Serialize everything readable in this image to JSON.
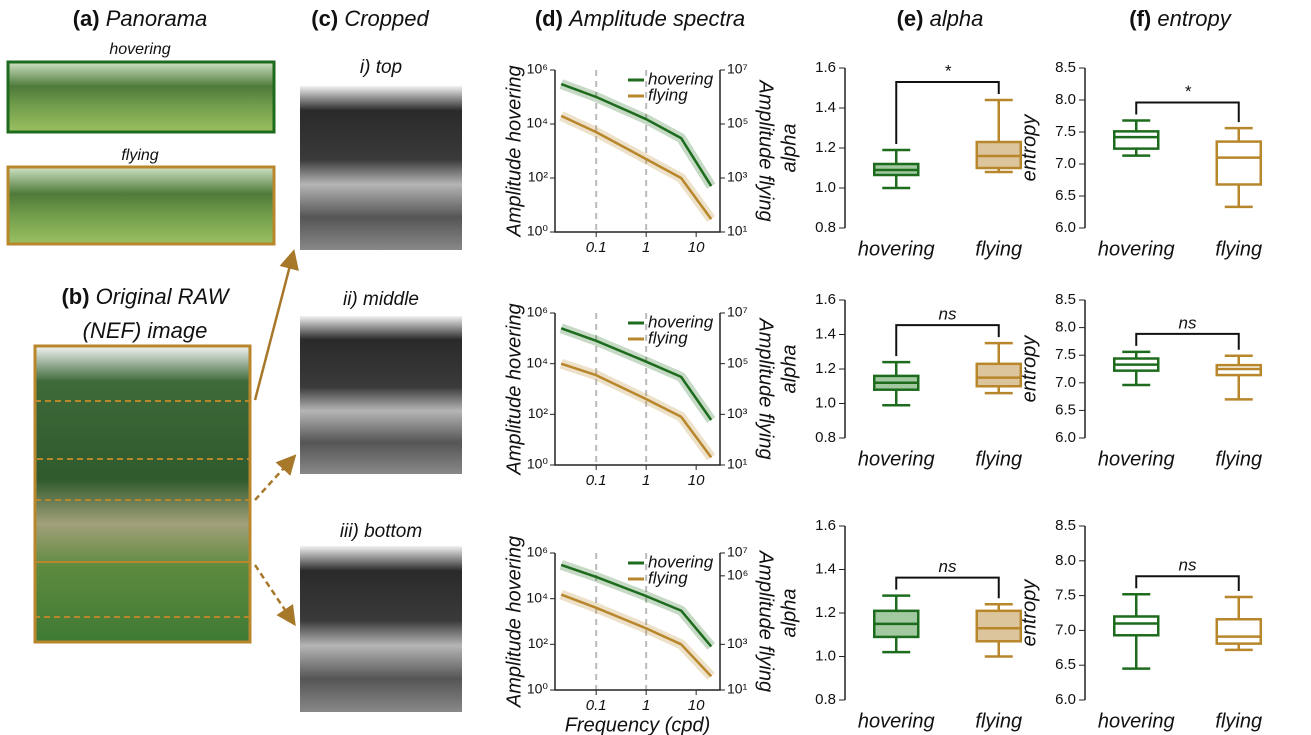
{
  "panels": [
    {
      "label": "(a)",
      "title": "Panorama"
    },
    {
      "label": "(b)",
      "title": [
        "Original RAW",
        "(NEF) image"
      ]
    },
    {
      "label": "(c)",
      "title": "Cropped"
    },
    {
      "label": "(d)",
      "title": "Amplitude spectra"
    },
    {
      "label": "(e)",
      "title": "alpha"
    },
    {
      "label": "(f)",
      "title": "entropy"
    }
  ],
  "panorama_captions": [
    "hovering",
    "flying"
  ],
  "crop_captions": [
    "i) top",
    "ii) middle",
    "iii) bottom"
  ],
  "chart_data": [
    {
      "type": "line",
      "xscale": "log",
      "yscale": "log",
      "ylabel": "Amplitude hovering",
      "y2label": "Amplitude flying",
      "x": [
        0.02,
        0.1,
        1,
        5,
        20
      ],
      "series": [
        {
          "name": "hovering",
          "color": "#1d6b1d",
          "values": [
            300000,
            100000,
            15000,
            3000,
            50
          ]
        },
        {
          "name": "flying",
          "color": "#b8862b",
          "axis": "y2",
          "values": [
            200000,
            50000,
            5000,
            1000,
            30
          ]
        }
      ],
      "xlim": [
        0.015,
        30
      ],
      "xticks": [
        0.1,
        1,
        10
      ],
      "vlines": [
        0.1,
        1
      ],
      "ylim": [
        1,
        1000000
      ],
      "yticks": [
        {
          "value": 1,
          "label": "10⁰"
        },
        {
          "value": 100,
          "label": "10²"
        },
        {
          "value": 10000,
          "label": "10⁴"
        },
        {
          "value": 1000000,
          "label": "10⁶"
        }
      ],
      "y2lim": [
        10,
        10000000
      ],
      "y2ticks": [
        {
          "value": 10,
          "label": "10¹"
        },
        {
          "value": 1000,
          "label": "10³"
        },
        {
          "value": 100000,
          "label": "10⁵"
        },
        {
          "value": 10000000,
          "label": "10⁷"
        }
      ]
    },
    {
      "type": "line",
      "xscale": "log",
      "yscale": "log",
      "ylabel": "Amplitude hovering",
      "y2label": "Amplitude flying",
      "x": [
        0.02,
        0.1,
        1,
        5,
        20
      ],
      "series": [
        {
          "name": "hovering",
          "color": "#1d6b1d",
          "values": [
            250000,
            80000,
            12000,
            3000,
            60
          ]
        },
        {
          "name": "flying",
          "color": "#b8862b",
          "axis": "y2",
          "values": [
            100000,
            35000,
            4000,
            800,
            20
          ]
        }
      ],
      "xlim": [
        0.015,
        30
      ],
      "xticks": [
        0.1,
        1,
        10
      ],
      "vlines": [
        0.1,
        1
      ],
      "ylim": [
        1,
        1000000
      ],
      "yticks": [
        {
          "value": 1,
          "label": "10⁰"
        },
        {
          "value": 100,
          "label": "10²"
        },
        {
          "value": 10000,
          "label": "10⁴"
        },
        {
          "value": 1000000,
          "label": "10⁶"
        }
      ],
      "y2lim": [
        10,
        10000000
      ],
      "y2ticks": [
        {
          "value": 10,
          "label": "10¹"
        },
        {
          "value": 1000,
          "label": "10³"
        },
        {
          "value": 100000,
          "label": "10⁵"
        },
        {
          "value": 10000000,
          "label": "10⁷"
        }
      ]
    },
    {
      "type": "line",
      "xscale": "log",
      "yscale": "log",
      "ylabel": "Amplitude hovering",
      "y2label": "Amplitude flying",
      "xlabel": "Frequency (cpd)",
      "x": [
        0.02,
        0.1,
        1,
        5,
        20
      ],
      "series": [
        {
          "name": "hovering",
          "color": "#1d6b1d",
          "values": [
            300000,
            90000,
            13000,
            3000,
            80
          ]
        },
        {
          "name": "flying",
          "color": "#b8862b",
          "axis": "y2",
          "values": [
            150000,
            40000,
            5000,
            1000,
            40
          ]
        }
      ],
      "xlim": [
        0.015,
        30
      ],
      "xticks": [
        0.1,
        1,
        10
      ],
      "vlines": [
        0.1,
        1
      ],
      "ylim": [
        1,
        1000000
      ],
      "yticks": [
        {
          "value": 1,
          "label": "10⁰"
        },
        {
          "value": 100,
          "label": "10²"
        },
        {
          "value": 10000,
          "label": "10⁴"
        },
        {
          "value": 1000000,
          "label": "10⁶"
        }
      ],
      "y2lim": [
        10,
        10000000
      ],
      "y2ticks": [
        {
          "value": 10,
          "label": "10¹"
        },
        {
          "value": 1000,
          "label": "10³"
        },
        {
          "value": 1000000,
          "label": "10⁶"
        },
        {
          "value": 10000000,
          "label": "10⁷"
        }
      ]
    },
    {
      "type": "box",
      "ylabel": "alpha",
      "categories": [
        "hovering",
        "flying"
      ],
      "colors": [
        "#1d6b1d",
        "#b8862b"
      ],
      "fills": [
        "#a3c9a0",
        "#dcc59c"
      ],
      "annotation": "*",
      "boxes": [
        {
          "min": 1.0,
          "q1": 1.065,
          "median": 1.09,
          "q3": 1.12,
          "max": 1.19
        },
        {
          "min": 1.08,
          "q1": 1.1,
          "median": 1.16,
          "q3": 1.23,
          "max": 1.44
        }
      ],
      "ylim": [
        0.8,
        1.6
      ],
      "yticks": [
        0.8,
        {
          "value": 1,
          "label": "1.0"
        },
        1.2,
        1.4,
        1.6
      ]
    },
    {
      "type": "box",
      "ylabel": "alpha",
      "categories": [
        "hovering",
        "flying"
      ],
      "colors": [
        "#1d6b1d",
        "#b8862b"
      ],
      "fills": [
        "#a3c9a0",
        "#dcc59c"
      ],
      "annotation": "ns",
      "boxes": [
        {
          "min": 0.99,
          "q1": 1.08,
          "median": 1.12,
          "q3": 1.16,
          "max": 1.24
        },
        {
          "min": 1.06,
          "q1": 1.1,
          "median": 1.15,
          "q3": 1.23,
          "max": 1.35
        }
      ],
      "ylim": [
        0.8,
        1.6
      ],
      "yticks": [
        0.8,
        {
          "value": 1,
          "label": "1.0"
        },
        1.2,
        1.4,
        1.6
      ]
    },
    {
      "type": "box",
      "ylabel": "alpha",
      "categories": [
        "hovering",
        "flying"
      ],
      "colors": [
        "#1d6b1d",
        "#b8862b"
      ],
      "fills": [
        "#a3c9a0",
        "#dcc59c"
      ],
      "annotation": "ns",
      "boxes": [
        {
          "min": 1.02,
          "q1": 1.09,
          "median": 1.15,
          "q3": 1.21,
          "max": 1.28
        },
        {
          "min": 1.0,
          "q1": 1.07,
          "median": 1.13,
          "q3": 1.21,
          "max": 1.24
        }
      ],
      "ylim": [
        0.8,
        1.6
      ],
      "yticks": [
        0.8,
        {
          "value": 1,
          "label": "1.0"
        },
        1.2,
        1.4,
        1.6
      ]
    },
    {
      "type": "box",
      "ylabel": "entropy",
      "categories": [
        "hovering",
        "flying"
      ],
      "colors": [
        "#1d6b1d",
        "#b8862b"
      ],
      "fills": [
        "#ffffff",
        "#ffffff"
      ],
      "annotation": "*",
      "boxes": [
        {
          "min": 7.13,
          "q1": 7.24,
          "median": 7.42,
          "q3": 7.51,
          "max": 7.68
        },
        {
          "min": 6.33,
          "q1": 6.68,
          "median": 7.1,
          "q3": 7.35,
          "max": 7.56
        }
      ],
      "ylim": [
        6,
        8.5
      ],
      "yticks": [
        {
          "value": 6,
          "label": "6.0"
        },
        6.5,
        {
          "value": 7,
          "label": "7.0"
        },
        7.5,
        {
          "value": 8,
          "label": "8.0"
        },
        8.5
      ]
    },
    {
      "type": "box",
      "ylabel": "entropy",
      "categories": [
        "hovering",
        "flying"
      ],
      "colors": [
        "#1d6b1d",
        "#b8862b"
      ],
      "fills": [
        "#ffffff",
        "#ffffff"
      ],
      "annotation": "ns",
      "boxes": [
        {
          "min": 6.96,
          "q1": 7.22,
          "median": 7.33,
          "q3": 7.44,
          "max": 7.56
        },
        {
          "min": 6.7,
          "q1": 7.14,
          "median": 7.25,
          "q3": 7.32,
          "max": 7.49
        }
      ],
      "ylim": [
        6,
        8.5
      ],
      "yticks": [
        {
          "value": 6,
          "label": "6.0"
        },
        6.5,
        {
          "value": 7,
          "label": "7.0"
        },
        7.5,
        {
          "value": 8,
          "label": "8.0"
        },
        8.5
      ]
    },
    {
      "type": "box",
      "ylabel": "entropy",
      "categories": [
        "hovering",
        "flying"
      ],
      "colors": [
        "#1d6b1d",
        "#b8862b"
      ],
      "fills": [
        "#ffffff",
        "#ffffff"
      ],
      "annotation": "ns",
      "boxes": [
        {
          "min": 6.45,
          "q1": 6.93,
          "median": 7.1,
          "q3": 7.2,
          "max": 7.52
        },
        {
          "min": 6.72,
          "q1": 6.81,
          "median": 6.91,
          "q3": 7.16,
          "max": 7.48
        }
      ],
      "ylim": [
        6,
        8.5
      ],
      "yticks": [
        {
          "value": 6,
          "label": "6.0"
        },
        6.5,
        {
          "value": 7,
          "label": "7.0"
        },
        7.5,
        {
          "value": 8,
          "label": "8.0"
        },
        8.5
      ]
    }
  ]
}
